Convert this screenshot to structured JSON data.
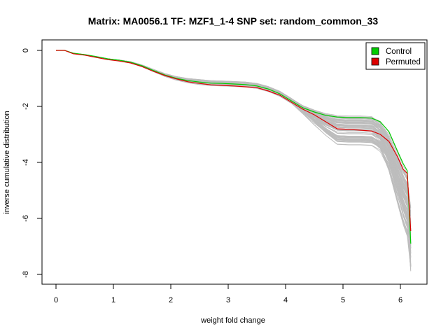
{
  "chart_data": {
    "type": "line",
    "title": "Matrix: MA0056.1 TF: MZF1_1-4 SNP set: random_common_33",
    "xlabel": "weight fold change",
    "ylabel": "inverse cumulative distribution",
    "xlim": [
      0,
      6.2
    ],
    "ylim": [
      -8,
      0
    ],
    "x_ticks": [
      0,
      1,
      2,
      3,
      4,
      5,
      6
    ],
    "y_ticks": [
      0,
      -2,
      -4,
      -6,
      -8
    ],
    "grid": false,
    "legend_position": "top-right",
    "series": [
      {
        "name": "Control",
        "color": "#00cc00",
        "x": [
          0,
          0.15,
          0.3,
          0.5,
          0.7,
          0.9,
          1.1,
          1.3,
          1.5,
          1.7,
          1.9,
          2.1,
          2.3,
          2.5,
          2.7,
          2.9,
          3.1,
          3.3,
          3.5,
          3.7,
          3.9,
          4.1,
          4.3,
          4.5,
          4.7,
          4.9,
          5.1,
          5.3,
          5.5,
          5.65,
          5.8,
          5.95,
          6.05,
          6.12,
          6.18
        ],
        "values": [
          0,
          0,
          -0.1,
          -0.15,
          -0.22,
          -0.3,
          -0.35,
          -0.42,
          -0.55,
          -0.72,
          -0.88,
          -1.0,
          -1.08,
          -1.13,
          -1.17,
          -1.18,
          -1.2,
          -1.22,
          -1.27,
          -1.38,
          -1.55,
          -1.8,
          -2.05,
          -2.2,
          -2.32,
          -2.38,
          -2.4,
          -2.4,
          -2.42,
          -2.55,
          -2.9,
          -3.6,
          -4.05,
          -4.3,
          -6.9
        ]
      },
      {
        "name": "Permuted",
        "color": "#dd0000",
        "x": [
          0,
          0.15,
          0.3,
          0.5,
          0.7,
          0.9,
          1.1,
          1.3,
          1.5,
          1.7,
          1.9,
          2.1,
          2.3,
          2.5,
          2.7,
          2.9,
          3.1,
          3.3,
          3.5,
          3.7,
          3.9,
          4.1,
          4.3,
          4.5,
          4.7,
          4.9,
          5.1,
          5.3,
          5.5,
          5.65,
          5.8,
          5.95,
          6.05,
          6.12,
          6.18
        ],
        "values": [
          0,
          0,
          -0.12,
          -0.17,
          -0.25,
          -0.33,
          -0.38,
          -0.45,
          -0.58,
          -0.75,
          -0.9,
          -1.02,
          -1.12,
          -1.18,
          -1.23,
          -1.25,
          -1.27,
          -1.3,
          -1.33,
          -1.45,
          -1.6,
          -1.85,
          -2.1,
          -2.3,
          -2.55,
          -2.8,
          -2.82,
          -2.85,
          -2.88,
          -3.0,
          -3.25,
          -3.8,
          -4.25,
          -4.4,
          -6.45
        ]
      }
    ]
  }
}
